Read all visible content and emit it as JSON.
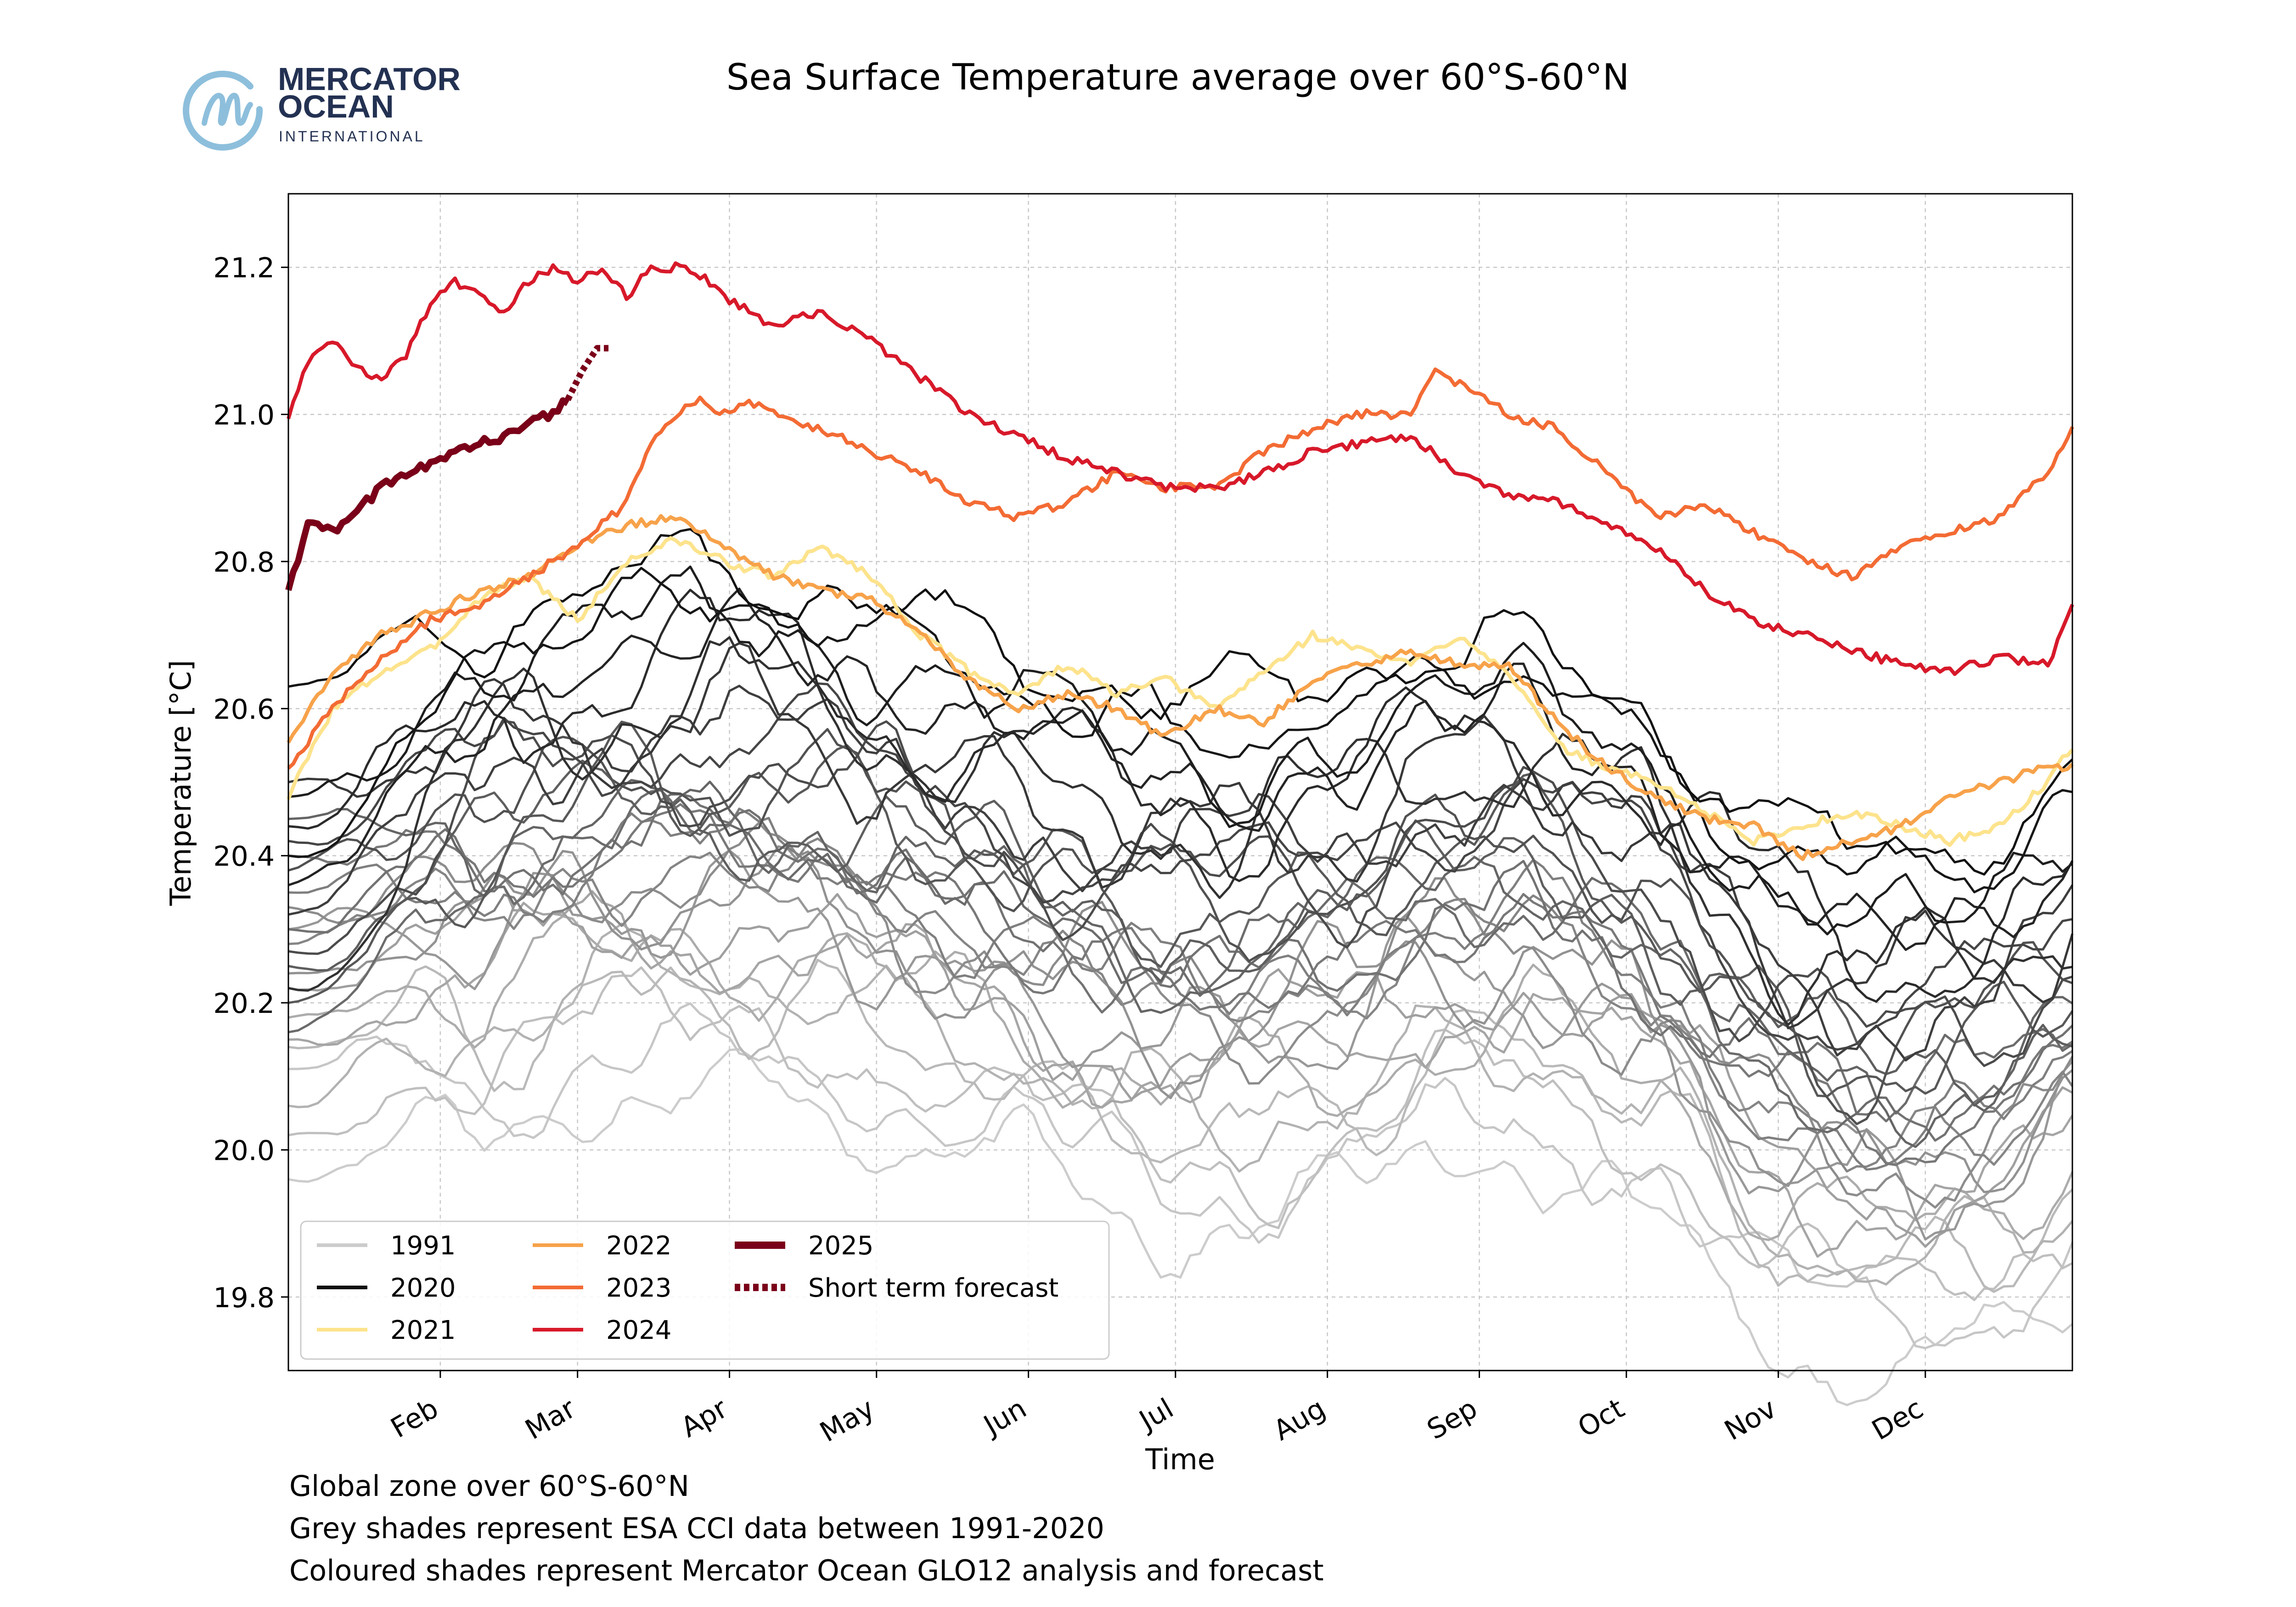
{
  "logo": {
    "line1": "MERCATOR",
    "line2": "OCEAN",
    "line3": "INTERNATIONAL",
    "icon": "mercator-m-circle-icon",
    "colors": {
      "navy": "#233152",
      "circle": "#8dbfdc"
    }
  },
  "footnotes": [
    "Global zone over 60°S-60°N",
    "Grey shades represent ESA CCI data between 1991-2020",
    "Coloured shades represent Mercator Ocean GLO12 analysis and forecast"
  ],
  "chart_data": {
    "type": "line",
    "title": "Sea Surface Temperature average over 60°S-60°N",
    "xlabel": "Time",
    "ylabel": "Temperature [°C]",
    "x_unit": "day of year",
    "xlim": [
      1,
      365
    ],
    "ylim": [
      19.7,
      21.3
    ],
    "grid": true,
    "legend_position": "lower-left",
    "x_ticks": [
      {
        "label": "Feb",
        "day": 32
      },
      {
        "label": "Mar",
        "day": 60
      },
      {
        "label": "Apr",
        "day": 91
      },
      {
        "label": "May",
        "day": 121
      },
      {
        "label": "Jun",
        "day": 152
      },
      {
        "label": "Jul",
        "day": 182
      },
      {
        "label": "Aug",
        "day": 213
      },
      {
        "label": "Sep",
        "day": 244
      },
      {
        "label": "Oct",
        "day": 274
      },
      {
        "label": "Nov",
        "day": 305
      },
      {
        "label": "Dec",
        "day": 335
      }
    ],
    "y_ticks": [
      "19.8",
      "20.0",
      "20.2",
      "20.4",
      "20.6",
      "20.8",
      "21.0",
      "21.2"
    ],
    "grey_years": {
      "range": "1991-2020",
      "count": 30,
      "color_start": "#cccccc",
      "color_end": "#111111",
      "first_values": [
        19.96,
        20.11,
        20.02,
        20.14,
        20.06,
        20.18,
        20.15,
        20.22,
        20.3,
        20.24,
        20.33,
        20.28,
        20.35,
        20.4,
        20.3,
        20.16,
        20.45,
        20.25,
        20.2,
        20.38,
        20.27,
        20.42,
        20.32,
        20.5,
        20.22,
        20.44,
        20.36,
        20.48,
        20.4,
        20.63
      ],
      "series_offsets": [
        -0.29,
        -0.24,
        -0.2,
        -0.17,
        -0.14,
        -0.11,
        -0.09,
        -0.07,
        -0.05,
        -0.03,
        -0.01,
        0.0,
        0.02,
        0.03,
        0.05,
        0.06,
        0.08,
        0.1,
        0.12,
        0.14,
        0.16,
        0.18,
        0.2,
        0.22,
        0.24,
        0.27,
        0.3,
        0.33,
        0.36,
        0.4
      ],
      "base_curve": {
        "x": [
          1,
          20,
          45,
          70,
          90,
          110,
          130,
          150,
          165,
          180,
          195,
          215,
          235,
          250,
          270,
          290,
          305,
          320,
          335,
          350,
          365
        ],
        "y": [
          20.08,
          20.22,
          20.34,
          20.38,
          20.38,
          20.36,
          20.3,
          20.26,
          20.22,
          20.2,
          20.2,
          20.22,
          20.28,
          20.3,
          20.24,
          20.12,
          20.04,
          20.0,
          20.0,
          20.04,
          20.1
        ]
      }
    },
    "series": [
      {
        "name": "2021",
        "color": "#fde38c",
        "x": [
          1,
          10,
          20,
          30,
          40,
          50,
          60,
          70,
          80,
          90,
          100,
          110,
          120,
          130,
          140,
          150,
          160,
          170,
          180,
          190,
          200,
          210,
          220,
          230,
          240,
          250,
          260,
          270,
          280,
          290,
          300,
          310,
          320,
          330,
          340,
          350,
          360,
          365
        ],
        "y": [
          20.48,
          20.6,
          20.65,
          20.68,
          20.75,
          20.78,
          20.72,
          20.8,
          20.83,
          20.8,
          20.78,
          20.82,
          20.78,
          20.7,
          20.65,
          20.62,
          20.66,
          20.62,
          20.64,
          20.6,
          20.65,
          20.7,
          20.68,
          20.66,
          20.7,
          20.65,
          20.55,
          20.52,
          20.5,
          20.46,
          20.42,
          20.44,
          20.46,
          20.44,
          20.42,
          20.44,
          20.5,
          20.55
        ]
      },
      {
        "name": "2022",
        "color": "#f7a24a",
        "x": [
          1,
          10,
          20,
          30,
          40,
          50,
          60,
          70,
          80,
          90,
          100,
          110,
          120,
          130,
          140,
          150,
          160,
          170,
          180,
          190,
          200,
          210,
          220,
          230,
          240,
          250,
          260,
          270,
          280,
          290,
          300,
          310,
          320,
          330,
          340,
          350,
          360,
          365
        ],
        "y": [
          20.55,
          20.65,
          20.7,
          20.73,
          20.76,
          20.78,
          20.82,
          20.85,
          20.86,
          20.82,
          20.78,
          20.76,
          20.75,
          20.7,
          20.64,
          20.6,
          20.62,
          20.6,
          20.56,
          20.6,
          20.58,
          20.64,
          20.66,
          20.68,
          20.66,
          20.66,
          20.58,
          20.52,
          20.48,
          20.45,
          20.44,
          20.4,
          20.42,
          20.44,
          20.48,
          20.5,
          20.52,
          20.52
        ]
      },
      {
        "name": "2023",
        "color": "#f36b34",
        "x": [
          1,
          10,
          20,
          30,
          40,
          50,
          60,
          70,
          75,
          80,
          85,
          90,
          95,
          100,
          110,
          120,
          130,
          140,
          150,
          160,
          170,
          180,
          190,
          200,
          210,
          220,
          230,
          235,
          240,
          250,
          260,
          270,
          280,
          290,
          300,
          310,
          320,
          330,
          340,
          350,
          360,
          365
        ],
        "y": [
          20.52,
          20.6,
          20.67,
          20.72,
          20.74,
          20.78,
          20.82,
          20.88,
          20.96,
          21.0,
          21.02,
          21.0,
          21.02,
          21.0,
          20.98,
          20.95,
          20.92,
          20.88,
          20.86,
          20.88,
          20.92,
          20.9,
          20.9,
          20.95,
          20.98,
          21.0,
          21.0,
          21.06,
          21.04,
          21.0,
          20.98,
          20.92,
          20.86,
          20.88,
          20.84,
          20.8,
          20.78,
          20.82,
          20.84,
          20.86,
          20.92,
          20.98
        ]
      },
      {
        "name": "2024",
        "color": "#d7192a",
        "x": [
          1,
          5,
          10,
          15,
          20,
          25,
          30,
          35,
          40,
          45,
          50,
          55,
          60,
          65,
          70,
          75,
          80,
          85,
          90,
          95,
          100,
          110,
          120,
          130,
          140,
          150,
          160,
          170,
          180,
          190,
          200,
          210,
          220,
          230,
          240,
          250,
          260,
          270,
          280,
          290,
          300,
          310,
          320,
          330,
          340,
          350,
          360,
          365
        ],
        "y": [
          21.0,
          21.07,
          21.1,
          21.06,
          21.05,
          21.08,
          21.15,
          21.18,
          21.16,
          21.14,
          21.18,
          21.2,
          21.18,
          21.2,
          21.16,
          21.2,
          21.2,
          21.19,
          21.16,
          21.14,
          21.12,
          21.14,
          21.1,
          21.05,
          21.0,
          20.97,
          20.94,
          20.92,
          20.9,
          20.9,
          20.92,
          20.95,
          20.96,
          20.97,
          20.92,
          20.89,
          20.88,
          20.85,
          20.82,
          20.76,
          20.72,
          20.7,
          20.68,
          20.66,
          20.65,
          20.67,
          20.66,
          20.74
        ]
      },
      {
        "name": "2025",
        "color": "#7a0019",
        "x": [
          1,
          5,
          10,
          15,
          20,
          25,
          30,
          35,
          40,
          45,
          50,
          55,
          58
        ],
        "y": [
          20.76,
          20.85,
          20.84,
          20.87,
          20.9,
          20.92,
          20.93,
          20.95,
          20.96,
          20.97,
          20.99,
          21.0,
          21.02
        ]
      },
      {
        "name": "Short term forecast",
        "color": "#7a0019",
        "dashed": true,
        "x": [
          58,
          61,
          64,
          67
        ],
        "y": [
          21.02,
          21.06,
          21.09,
          21.09
        ]
      }
    ],
    "legend": [
      {
        "label": "1991",
        "color": "#cccccc",
        "style": "solid",
        "width": "thin"
      },
      {
        "label": "2020",
        "color": "#111111",
        "style": "solid",
        "width": "thin"
      },
      {
        "label": "2021",
        "color": "#fde38c",
        "style": "solid",
        "width": "thin"
      },
      {
        "label": "2022",
        "color": "#f7a24a",
        "style": "solid",
        "width": "thin"
      },
      {
        "label": "2023",
        "color": "#f36b34",
        "style": "solid",
        "width": "thin"
      },
      {
        "label": "2024",
        "color": "#d7192a",
        "style": "solid",
        "width": "thin"
      },
      {
        "label": "2025",
        "color": "#7a0019",
        "style": "solid",
        "width": "thick"
      },
      {
        "label": "Short term forecast",
        "color": "#7a0019",
        "style": "dotted",
        "width": "thick"
      }
    ]
  }
}
